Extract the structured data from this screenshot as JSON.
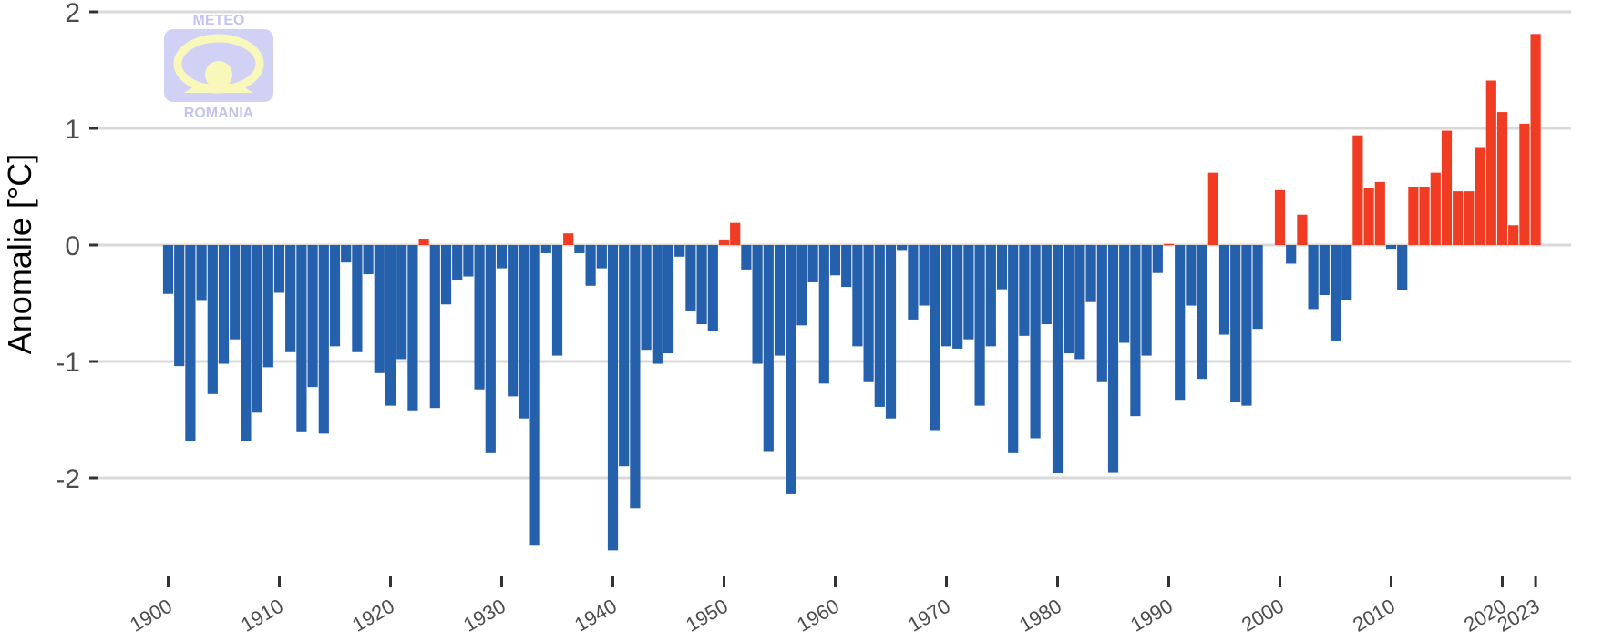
{
  "chart_data": {
    "type": "bar",
    "ylabel": "Anomalie [°C]",
    "xlabel": "",
    "ylim": [
      -2.8,
      2.0
    ],
    "yticks": [
      2,
      1,
      0,
      -1,
      -2
    ],
    "ytick_labels": [
      "2",
      "1",
      "0",
      "-1",
      "-2"
    ],
    "xticks": [
      1900,
      1910,
      1920,
      1930,
      1940,
      1950,
      1960,
      1970,
      1980,
      1990,
      2000,
      2010,
      2020,
      2023
    ],
    "xtick_labels": [
      "1900",
      "1910",
      "1920",
      "1930",
      "1940",
      "1950",
      "1960",
      "1970",
      "1980",
      "1990",
      "2000",
      "2010",
      "2020",
      "2023"
    ],
    "grid": "horizontal",
    "positive_color": "#f03c23",
    "negative_color": "#2460ac",
    "x_start": 1900,
    "x": [
      1900,
      1901,
      1902,
      1903,
      1904,
      1905,
      1906,
      1907,
      1908,
      1909,
      1910,
      1911,
      1912,
      1913,
      1914,
      1915,
      1916,
      1917,
      1918,
      1919,
      1920,
      1921,
      1922,
      1923,
      1924,
      1925,
      1926,
      1927,
      1928,
      1929,
      1930,
      1931,
      1932,
      1933,
      1934,
      1935,
      1936,
      1937,
      1938,
      1939,
      1940,
      1941,
      1942,
      1943,
      1944,
      1945,
      1946,
      1947,
      1948,
      1949,
      1950,
      1951,
      1952,
      1953,
      1954,
      1955,
      1956,
      1957,
      1958,
      1959,
      1960,
      1961,
      1962,
      1963,
      1964,
      1965,
      1966,
      1967,
      1968,
      1969,
      1970,
      1971,
      1972,
      1973,
      1974,
      1975,
      1976,
      1977,
      1978,
      1979,
      1980,
      1981,
      1982,
      1983,
      1984,
      1985,
      1986,
      1987,
      1988,
      1989,
      1990,
      1991,
      1992,
      1993,
      1994,
      1995,
      1996,
      1997,
      1998,
      1999,
      2000,
      2001,
      2002,
      2003,
      2004,
      2005,
      2006,
      2007,
      2008,
      2009,
      2010,
      2011,
      2012,
      2013,
      2014,
      2015,
      2016,
      2017,
      2018,
      2019,
      2020,
      2021,
      2022,
      2023
    ],
    "values": [
      -0.42,
      -1.04,
      -1.68,
      -0.48,
      -1.28,
      -1.02,
      -0.81,
      -1.68,
      -1.44,
      -1.05,
      -0.41,
      -0.92,
      -1.6,
      -1.22,
      -1.62,
      -0.87,
      -0.15,
      -0.92,
      -0.25,
      -1.1,
      -1.38,
      -0.98,
      -1.42,
      0.05,
      -1.4,
      -0.51,
      -0.3,
      -0.27,
      -1.24,
      -1.78,
      -0.2,
      -1.3,
      -1.49,
      -2.58,
      -0.07,
      -0.95,
      0.1,
      -0.07,
      -0.35,
      -0.2,
      -2.62,
      -1.9,
      -2.26,
      -0.9,
      -1.02,
      -0.93,
      -0.1,
      -0.57,
      -0.68,
      -0.74,
      0.04,
      0.19,
      -0.21,
      -1.02,
      -1.77,
      -0.95,
      -2.14,
      -0.69,
      -0.32,
      -1.19,
      -0.26,
      -0.36,
      -0.87,
      -1.17,
      -1.39,
      -1.49,
      -0.05,
      -0.64,
      -0.52,
      -1.59,
      -0.87,
      -0.89,
      -0.81,
      -1.38,
      -0.87,
      -0.38,
      -1.78,
      -0.78,
      -1.66,
      -0.68,
      -1.96,
      -0.93,
      -0.98,
      -0.49,
      -1.17,
      -1.95,
      -0.84,
      -1.47,
      -0.95,
      -0.24,
      0.01,
      -1.33,
      -0.52,
      -1.15,
      0.62,
      -0.77,
      -1.35,
      -1.38,
      -0.72,
      0.0,
      0.47,
      -0.16,
      0.26,
      -0.55,
      -0.43,
      -0.82,
      -0.47,
      0.94,
      0.49,
      0.54,
      -0.04,
      -0.39,
      0.5,
      0.5,
      0.62,
      0.98,
      0.46,
      0.46,
      0.84,
      1.41,
      1.14,
      0.17,
      1.04,
      1.81
    ]
  },
  "logo": {
    "top_text": "METEO",
    "bottom_text": "ROMANIA"
  }
}
